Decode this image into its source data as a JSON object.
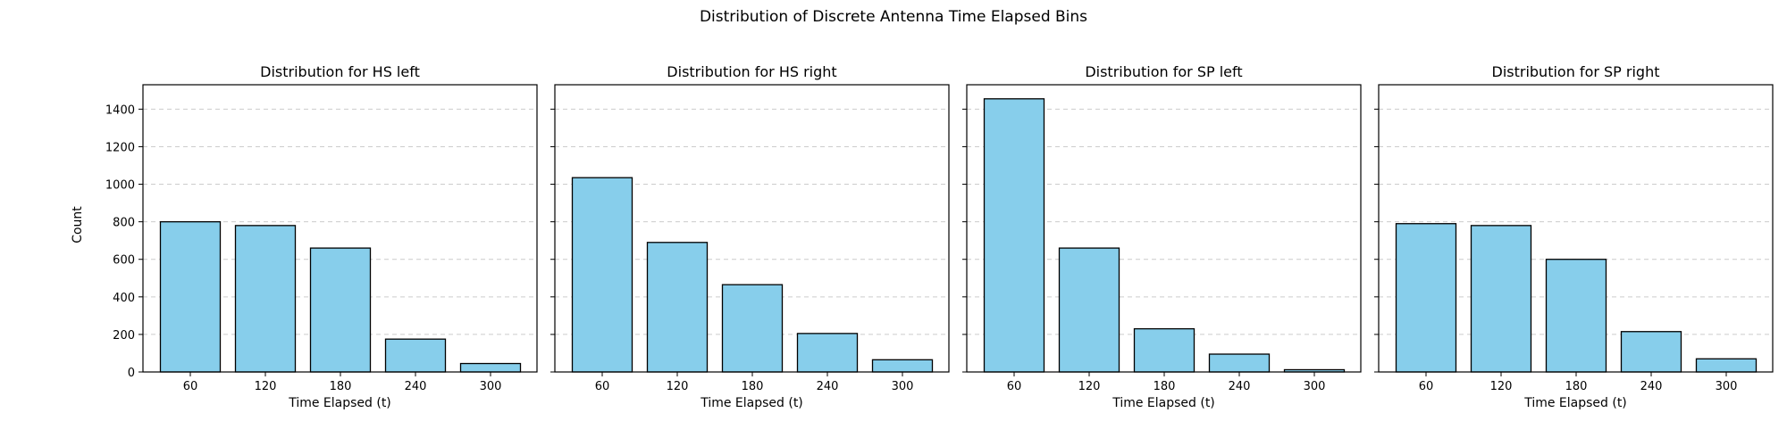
{
  "figure": {
    "suptitle": "Distribution of Discrete Antenna Time Elapsed Bins",
    "shared_ylabel": "Count"
  },
  "style": {
    "bar_color": "#87ceeb",
    "bar_edge": "#000000",
    "grid_color": "#cccccc",
    "grid": "y-axis dashed",
    "y_shared": true
  },
  "chart_data": [
    {
      "type": "bar",
      "title": "Distribution for HS left",
      "xlabel": "Time Elapsed (t)",
      "ylabel": "Count",
      "categories": [
        "60",
        "120",
        "180",
        "240",
        "300"
      ],
      "values": [
        800,
        780,
        660,
        175,
        45
      ],
      "ylim": [
        0,
        1530
      ],
      "yticks": [
        0,
        200,
        400,
        600,
        800,
        1000,
        1200,
        1400
      ]
    },
    {
      "type": "bar",
      "title": "Distribution for HS right",
      "xlabel": "Time Elapsed (t)",
      "ylabel": "",
      "categories": [
        "60",
        "120",
        "180",
        "240",
        "300"
      ],
      "values": [
        1035,
        690,
        465,
        205,
        65
      ],
      "ylim": [
        0,
        1530
      ],
      "yticks": [
        0,
        200,
        400,
        600,
        800,
        1000,
        1200,
        1400
      ]
    },
    {
      "type": "bar",
      "title": "Distribution for SP left",
      "xlabel": "Time Elapsed (t)",
      "ylabel": "",
      "categories": [
        "60",
        "120",
        "180",
        "240",
        "300"
      ],
      "values": [
        1455,
        660,
        230,
        95,
        12
      ],
      "ylim": [
        0,
        1530
      ],
      "yticks": [
        0,
        200,
        400,
        600,
        800,
        1000,
        1200,
        1400
      ]
    },
    {
      "type": "bar",
      "title": "Distribution for SP right",
      "xlabel": "Time Elapsed (t)",
      "ylabel": "",
      "categories": [
        "60",
        "120",
        "180",
        "240",
        "300"
      ],
      "values": [
        790,
        780,
        600,
        215,
        70
      ],
      "ylim": [
        0,
        1530
      ],
      "yticks": [
        0,
        200,
        400,
        600,
        800,
        1000,
        1200,
        1400
      ]
    }
  ]
}
